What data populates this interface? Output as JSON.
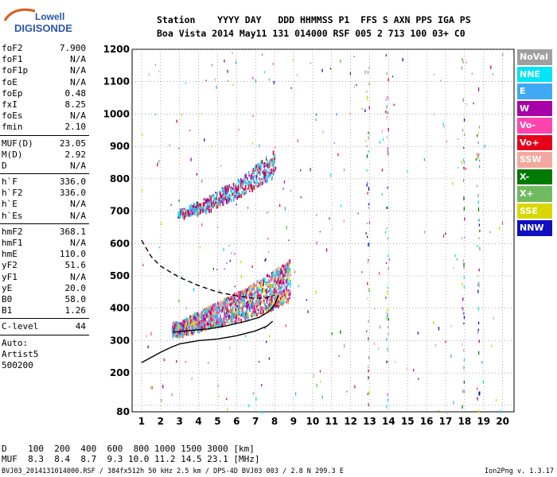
{
  "logo": {
    "line1": "Lowell",
    "line2": "DIGISONDE"
  },
  "header": {
    "line1": "Station    YYYY DAY   DDD HHMMSS P1  FFS S AXN PPS IGA PS",
    "line2": "Boa Vista 2014 May11 131 014000 RSF 005 2 713 100 03+ C0"
  },
  "params_groups": [
    [
      {
        "label": "foF2",
        "value": "7.900"
      },
      {
        "label": "foF1",
        "value": "N/A"
      },
      {
        "label": "foF1p",
        "value": "N/A"
      },
      {
        "label": "foE",
        "value": "N/A"
      },
      {
        "label": "foEp",
        "value": "0.48"
      },
      {
        "label": "fxI",
        "value": "8.25"
      },
      {
        "label": "foEs",
        "value": "N/A"
      },
      {
        "label": "fmin",
        "value": "2.10"
      }
    ],
    [
      {
        "label": "MUF(D)",
        "value": "23.05"
      },
      {
        "label": "M(D)",
        "value": "2.92"
      },
      {
        "label": "D",
        "value": "N/A"
      }
    ],
    [
      {
        "label": "h`F",
        "value": "336.0"
      },
      {
        "label": "h`F2",
        "value": "336.0"
      },
      {
        "label": "h`E",
        "value": "N/A"
      },
      {
        "label": "h`Es",
        "value": "N/A"
      }
    ],
    [
      {
        "label": "hmF2",
        "value": "368.1"
      },
      {
        "label": "hmF1",
        "value": "N/A"
      },
      {
        "label": "hmE",
        "value": "110.0"
      },
      {
        "label": "yF2",
        "value": "51.6"
      },
      {
        "label": "yF1",
        "value": "N/A"
      },
      {
        "label": "yE",
        "value": "20.0"
      },
      {
        "label": "B0",
        "value": "58.0"
      },
      {
        "label": "B1",
        "value": "1.26"
      }
    ],
    [
      {
        "label": "C-level",
        "value": "44"
      }
    ]
  ],
  "autoscale": {
    "line1": "Auto:",
    "line2": "Artist5",
    "line3": "500200"
  },
  "legend": [
    {
      "label": "NoVal",
      "color": "#a0a0a0"
    },
    {
      "label": "NNE",
      "color": "#00e5f5"
    },
    {
      "label": "E",
      "color": "#3fa9f5"
    },
    {
      "label": "W",
      "color": "#a800a8"
    },
    {
      "label": "Vo-",
      "color": "#ff44b0"
    },
    {
      "label": "Vo+",
      "color": "#e6001a"
    },
    {
      "label": "SSW",
      "color": "#f4a8a0"
    },
    {
      "label": "X-",
      "color": "#007a00"
    },
    {
      "label": "X+",
      "color": "#70bb60"
    },
    {
      "label": "SSE",
      "color": "#d8d800"
    },
    {
      "label": "NNW",
      "color": "#1010c0"
    }
  ],
  "muf_table": {
    "d_row": "D    100  200  400  600  800 1000 1500 3000 [km]",
    "muf_row": "MUF  8.3  8.4  8.7  9.3 10.0 11.2 14.5 23.1 [MHz]"
  },
  "footer": {
    "left": "BVJ03_2014131014000.RSF / 384fx512h 50 kHz 2.5 km / DPS-4D BVJ03 003 / 2.8 N 299.3 E",
    "right": "Ion2Png v. 1.3.17"
  },
  "chart_data": {
    "type": "scatter",
    "title": "",
    "xlabel": "",
    "ylabel": "",
    "xlim": [
      1,
      20
    ],
    "ylim": [
      80,
      1200
    ],
    "x_ticks": [
      1,
      2,
      3,
      4,
      5,
      6,
      7,
      8,
      9,
      10,
      11,
      12,
      13,
      14,
      15,
      16,
      17,
      18,
      19,
      20
    ],
    "y_ticks": [
      80,
      100,
      200,
      300,
      400,
      500,
      600,
      700,
      800,
      900,
      1000,
      1100,
      1200
    ],
    "y_tick_labels": [
      "80",
      "",
      "200",
      "300",
      "400",
      "500",
      "600",
      "700",
      "800",
      "900",
      "1000",
      "1100",
      "1200"
    ],
    "grid": true,
    "traces": [
      {
        "name": "O-trace F2",
        "x": [
          2.6,
          3.0,
          3.5,
          4.0,
          4.5,
          5.0,
          5.5,
          6.0,
          6.5,
          7.0,
          7.5,
          8.0,
          8.3,
          8.8
        ],
        "y": [
          335,
          330,
          345,
          355,
          365,
          375,
          385,
          395,
          405,
          420,
          430,
          445,
          455,
          470
        ]
      },
      {
        "name": "Multi-hop F2",
        "x": [
          2.9,
          3.5,
          4.0,
          4.5,
          5.0,
          5.5,
          6.0,
          6.5,
          7.0,
          7.5,
          8.0
        ],
        "y": [
          690,
          700,
          710,
          720,
          735,
          750,
          765,
          780,
          800,
          820,
          840
        ]
      },
      {
        "name": "Profile dashed",
        "x": [
          1.0,
          1.5,
          2.0,
          3.0,
          4.0,
          5.0,
          6.0,
          7.0,
          7.5,
          8.0
        ],
        "y": [
          610,
          560,
          530,
          495,
          470,
          450,
          438,
          430,
          432,
          440
        ]
      },
      {
        "name": "Virtual height model",
        "x": [
          2.7,
          3.5,
          4.5,
          5.5,
          6.5,
          7.2,
          7.7,
          8.0,
          8.2
        ],
        "y": [
          326,
          331,
          336,
          346,
          360,
          372,
          390,
          410,
          440
        ]
      },
      {
        "name": "True height profile",
        "x": [
          1.0,
          1.5,
          2.0,
          2.5,
          3.0,
          4.0,
          5.0,
          6.0,
          7.0,
          7.6,
          7.9
        ],
        "y": [
          232,
          248,
          264,
          278,
          290,
          300,
          305,
          315,
          330,
          345,
          360
        ]
      }
    ]
  }
}
